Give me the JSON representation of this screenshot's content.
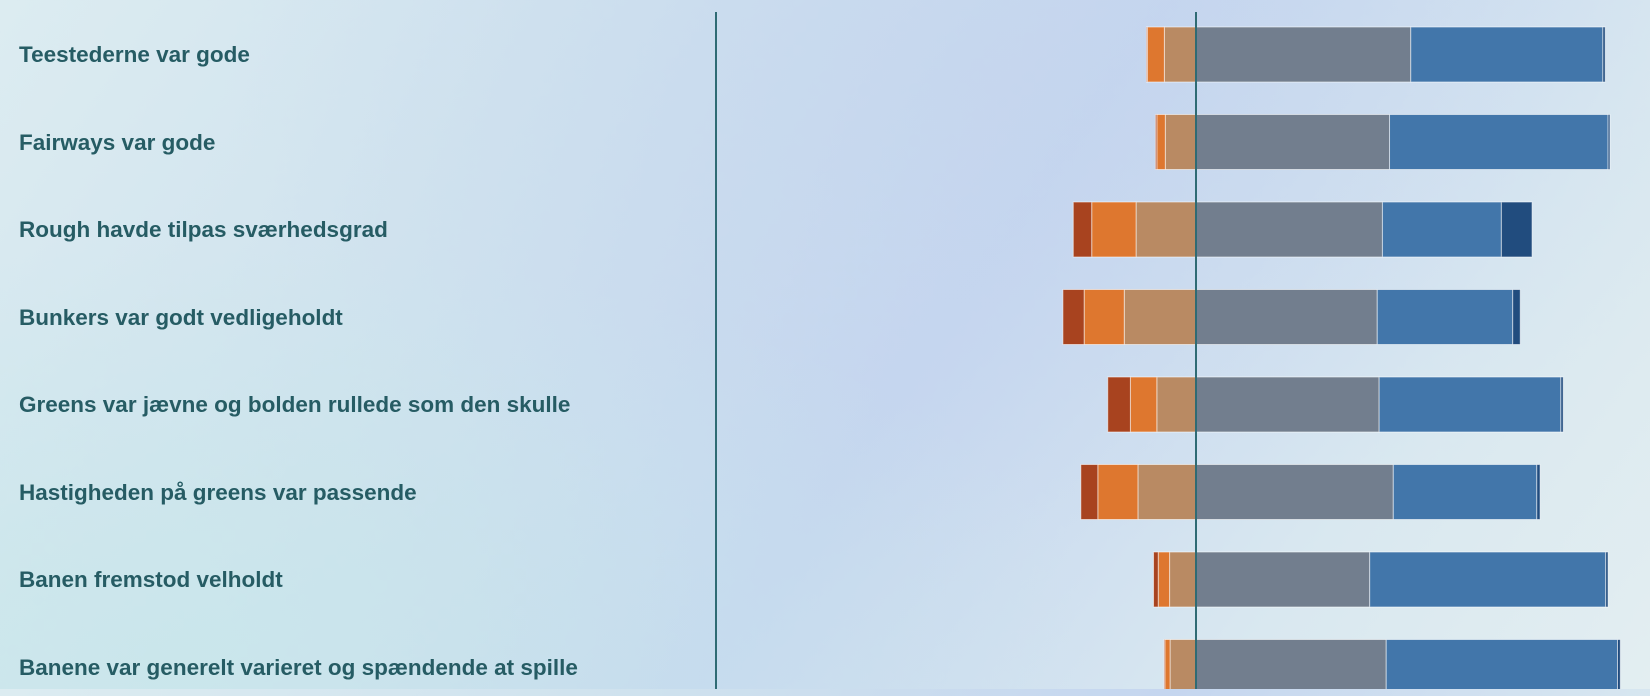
{
  "chart_data": {
    "type": "bar",
    "stacked": "diverging",
    "categories": [
      "Teestederne var gode",
      "Fairways var gode",
      "Rough havde tilpas sværhedsgrad",
      "Bunkers var godt vedligeholdt",
      "Greens var jævne og bolden rullede som den skulle",
      "Hastigheden på greens var passende",
      "Banen fremstod velholdt",
      "Banene var generelt varieret og spændende at spille"
    ],
    "series": [
      {
        "color": "#a8431f",
        "side": "negative",
        "values": [
          0.2,
          0.3,
          3.9,
          4.5,
          4.8,
          3.6,
          1.0,
          0.2
        ]
      },
      {
        "color": "#de772f",
        "side": "negative",
        "values": [
          3.6,
          1.8,
          9.4,
          8.5,
          5.6,
          8.5,
          2.4,
          1.1
        ]
      },
      {
        "color": "#b98a63",
        "side": "negative",
        "values": [
          6.7,
          6.5,
          12.7,
          15.2,
          8.3,
          12.3,
          5.6,
          5.5
        ]
      },
      {
        "color": "#727e8e",
        "side": "positive",
        "values": [
          45.5,
          41.0,
          39.5,
          38.4,
          38.8,
          41.8,
          36.8,
          40.3
        ]
      },
      {
        "color": "#4276aa",
        "side": "positive",
        "values": [
          40.7,
          46.3,
          25.2,
          28.7,
          38.5,
          30.4,
          50.0,
          49.0
        ]
      },
      {
        "color": "#214c7e",
        "side": "positive",
        "values": [
          0.5,
          0.4,
          6.5,
          1.6,
          0.5,
          0.7,
          0.5,
          0.6
        ]
      }
    ]
  }
}
